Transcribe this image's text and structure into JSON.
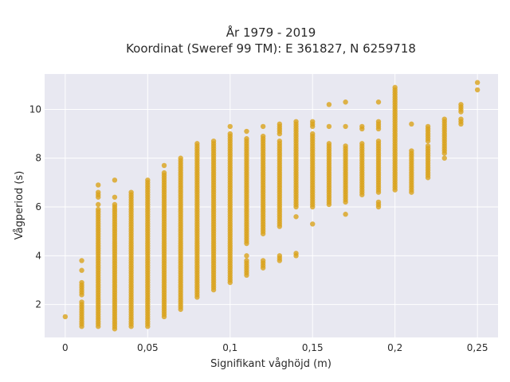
{
  "chart_data": {
    "type": "scatter",
    "title_line1": "År 1979 - 2019",
    "title_line2": "Koordinat (Sweref 99 TM): E 361827, N 6259718",
    "xlabel": "Signifikant våghöjd (m)",
    "ylabel": "Vågperiod (s)",
    "xlim": [
      -0.0125,
      0.2625
    ],
    "ylim": [
      0.65,
      11.45
    ],
    "x_ticks": [
      0,
      0.05,
      0.1,
      0.15,
      0.2,
      0.25
    ],
    "x_tick_labels": [
      "0",
      "0,05",
      "0,1",
      "0,15",
      "0,2",
      "0,25"
    ],
    "y_ticks": [
      2,
      4,
      6,
      8,
      10
    ],
    "y_tick_labels": [
      "2",
      "4",
      "6",
      "8",
      "10"
    ],
    "grid": true,
    "marker_color": "#D9A21B",
    "background_color": "#E8E8F1",
    "point_groups": [
      {
        "x": 0.0,
        "ranges": [
          [
            1.5,
            1.5
          ]
        ]
      },
      {
        "x": 0.01,
        "ranges": [
          [
            1.1,
            2.1
          ],
          [
            2.4,
            2.9
          ],
          [
            3.4,
            3.4
          ],
          [
            3.8,
            3.8
          ]
        ]
      },
      {
        "x": 0.02,
        "ranges": [
          [
            1.1,
            5.9
          ],
          [
            6.1,
            6.1
          ],
          [
            6.4,
            6.6
          ],
          [
            6.9,
            6.9
          ]
        ]
      },
      {
        "x": 0.03,
        "ranges": [
          [
            1.0,
            6.1
          ],
          [
            6.4,
            6.4
          ],
          [
            7.1,
            7.1
          ]
        ]
      },
      {
        "x": 0.04,
        "ranges": [
          [
            1.1,
            6.6
          ]
        ]
      },
      {
        "x": 0.05,
        "ranges": [
          [
            1.1,
            7.1
          ]
        ]
      },
      {
        "x": 0.06,
        "ranges": [
          [
            1.5,
            7.4
          ],
          [
            7.7,
            7.7
          ]
        ]
      },
      {
        "x": 0.07,
        "ranges": [
          [
            1.8,
            8.0
          ]
        ]
      },
      {
        "x": 0.08,
        "ranges": [
          [
            2.3,
            8.6
          ]
        ]
      },
      {
        "x": 0.09,
        "ranges": [
          [
            2.6,
            8.7
          ]
        ]
      },
      {
        "x": 0.1,
        "ranges": [
          [
            2.9,
            9.0
          ],
          [
            9.3,
            9.3
          ]
        ]
      },
      {
        "x": 0.11,
        "ranges": [
          [
            3.2,
            3.8
          ],
          [
            4.0,
            4.0
          ],
          [
            4.5,
            8.8
          ],
          [
            9.1,
            9.1
          ]
        ]
      },
      {
        "x": 0.12,
        "ranges": [
          [
            3.5,
            3.8
          ],
          [
            4.9,
            8.9
          ],
          [
            9.3,
            9.3
          ]
        ]
      },
      {
        "x": 0.13,
        "ranges": [
          [
            3.8,
            4.0
          ],
          [
            5.2,
            5.2
          ],
          [
            5.3,
            8.7
          ],
          [
            9.0,
            9.4
          ]
        ]
      },
      {
        "x": 0.14,
        "ranges": [
          [
            4.0,
            4.1
          ],
          [
            5.6,
            5.6
          ],
          [
            6.0,
            9.5
          ]
        ]
      },
      {
        "x": 0.15,
        "ranges": [
          [
            5.3,
            5.3
          ],
          [
            6.0,
            9.0
          ],
          [
            9.3,
            9.5
          ]
        ]
      },
      {
        "x": 0.16,
        "ranges": [
          [
            6.1,
            8.6
          ],
          [
            9.3,
            9.3
          ],
          [
            10.2,
            10.2
          ]
        ]
      },
      {
        "x": 0.17,
        "ranges": [
          [
            5.7,
            5.7
          ],
          [
            6.2,
            8.5
          ],
          [
            9.3,
            9.3
          ],
          [
            10.3,
            10.3
          ]
        ]
      },
      {
        "x": 0.18,
        "ranges": [
          [
            6.5,
            8.6
          ],
          [
            9.2,
            9.3
          ]
        ]
      },
      {
        "x": 0.19,
        "ranges": [
          [
            6.0,
            6.2
          ],
          [
            6.6,
            8.7
          ],
          [
            9.2,
            9.5
          ],
          [
            10.3,
            10.3
          ]
        ]
      },
      {
        "x": 0.2,
        "ranges": [
          [
            6.7,
            10.9
          ]
        ]
      },
      {
        "x": 0.21,
        "ranges": [
          [
            6.6,
            8.3
          ],
          [
            9.4,
            9.4
          ]
        ]
      },
      {
        "x": 0.22,
        "ranges": [
          [
            7.2,
            8.5
          ],
          [
            8.7,
            9.3
          ]
        ]
      },
      {
        "x": 0.23,
        "ranges": [
          [
            8.0,
            8.0
          ],
          [
            8.2,
            9.6
          ]
        ]
      },
      {
        "x": 0.24,
        "ranges": [
          [
            9.4,
            9.6
          ],
          [
            9.9,
            10.2
          ]
        ]
      },
      {
        "x": 0.25,
        "ranges": [
          [
            10.8,
            10.8
          ],
          [
            11.1,
            11.1
          ]
        ]
      }
    ]
  }
}
